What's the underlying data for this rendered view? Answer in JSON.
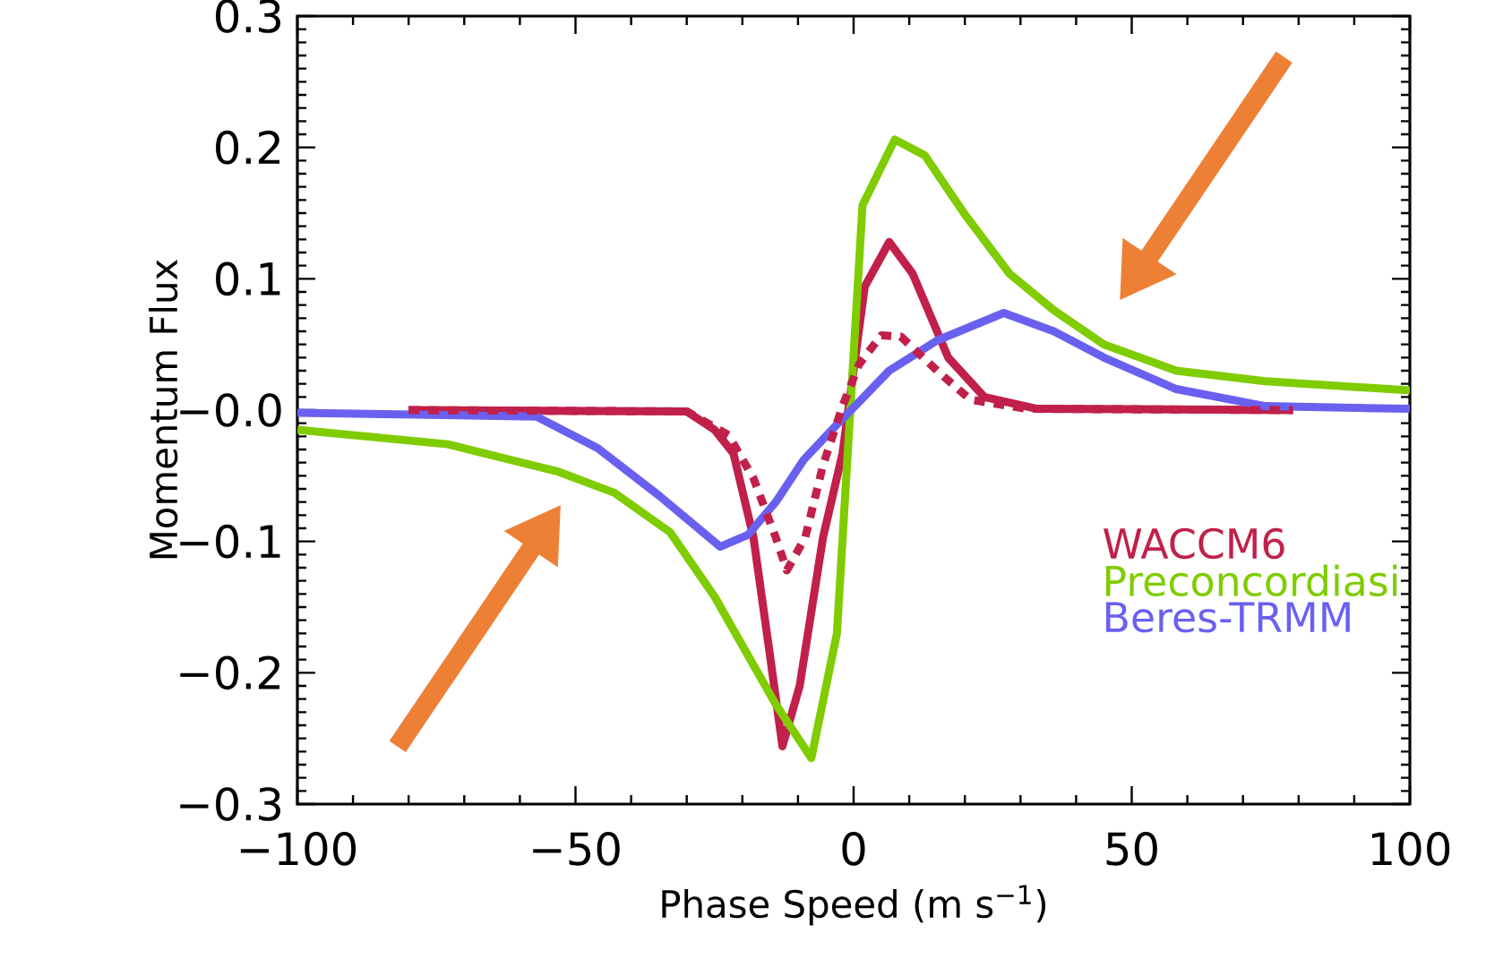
{
  "chart_data": {
    "type": "line",
    "xlabel": "Phase Speed (m s$^{−1}$)",
    "ylabel": "Momentum Flux",
    "xlim": [
      -100,
      100
    ],
    "ylim": [
      -0.3,
      0.3
    ],
    "xticks": [
      {
        "value": -100,
        "label": "−100"
      },
      {
        "value": -50,
        "label": "−50"
      },
      0,
      50,
      100
    ],
    "yticks": [
      {
        "value": -0.3,
        "label": "−0.3"
      },
      {
        "value": -0.2,
        "label": "−0.2"
      },
      {
        "value": -0.1,
        "label": "−0.1"
      },
      {
        "value": 0,
        "label": "−0.0"
      },
      0.1,
      0.2,
      0.3
    ],
    "grid": false,
    "legend": "bottom right",
    "marker": "none",
    "series": [
      {
        "name": "WACCM6",
        "color": "#c0204a",
        "line_style": "solid",
        "x": [
          -80,
          -30,
          -25,
          -21.6,
          -18,
          -15,
          -12.8,
          -9.7,
          -5.5,
          -2,
          2,
          6.4,
          10.6,
          17,
          23.5,
          33,
          79
        ],
        "values": [
          0,
          -0.001,
          -0.015,
          -0.033,
          -0.097,
          -0.188,
          -0.256,
          -0.21,
          -0.097,
          -0.033,
          0.094,
          0.128,
          0.104,
          0.04,
          0.01,
          0.001,
          0
        ]
      },
      {
        "name": "Preconcordiasi",
        "color": "#7fcc00",
        "line_style": "solid",
        "x": [
          -100,
          -73,
          -53,
          -43,
          -33,
          -25,
          -14,
          -7.6,
          -3,
          -0.6,
          1.6,
          7.4,
          12.8,
          20,
          28,
          36,
          45,
          58,
          74,
          100
        ],
        "values": [
          -0.015,
          -0.026,
          -0.047,
          -0.063,
          -0.093,
          -0.142,
          -0.224,
          -0.265,
          -0.17,
          0,
          0.156,
          0.206,
          0.194,
          0.149,
          0.104,
          0.076,
          0.05,
          0.03,
          0.022,
          0.015
        ]
      },
      {
        "name": "Beres-TRMM",
        "color": "#6a60f0",
        "line_style": "solid",
        "x": [
          -100,
          -57,
          -46,
          -35,
          -24,
          -19,
          -14,
          -9,
          -3,
          0,
          6.4,
          15,
          27,
          36,
          45,
          58,
          74,
          100
        ],
        "values": [
          -0.002,
          -0.005,
          -0.029,
          -0.065,
          -0.104,
          -0.095,
          -0.07,
          -0.038,
          -0.011,
          0.002,
          0.03,
          0.053,
          0.074,
          0.06,
          0.04,
          0.016,
          0.003,
          0.001
        ]
      },
      {
        "color": "#c0204a",
        "line_style": "dotted",
        "x": [
          -80,
          -30,
          -22.5,
          -18,
          -14,
          -12,
          -8.7,
          -5.5,
          -2,
          1,
          5,
          8.5,
          15,
          21,
          31,
          79
        ],
        "values": [
          0,
          -0.001,
          -0.019,
          -0.052,
          -0.097,
          -0.122,
          -0.097,
          -0.042,
          0.003,
          0.035,
          0.057,
          0.056,
          0.03,
          0.008,
          0.001,
          0
        ]
      }
    ]
  }
}
